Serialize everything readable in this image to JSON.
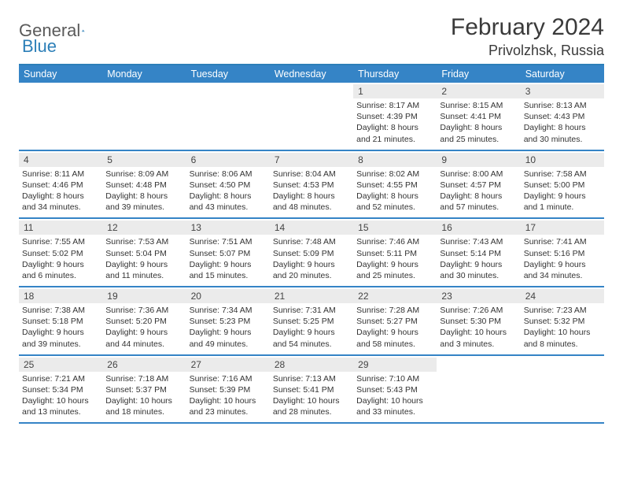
{
  "logo": {
    "part1": "General",
    "part2": "Blue"
  },
  "header": {
    "title": "February 2024",
    "location": "Privolzhsk, Russia"
  },
  "colors": {
    "header_bar": "#3584c6",
    "top_border": "#2c7fb8",
    "week_border": "#3584c6",
    "daynum_bg": "#ebebeb",
    "page_bg": "#ffffff",
    "text": "#333333"
  },
  "day_names": [
    "Sunday",
    "Monday",
    "Tuesday",
    "Wednesday",
    "Thursday",
    "Friday",
    "Saturday"
  ],
  "weeks": [
    [
      {
        "empty": true
      },
      {
        "empty": true
      },
      {
        "empty": true
      },
      {
        "empty": true
      },
      {
        "day": "1",
        "sunrise": "Sunrise: 8:17 AM",
        "sunset": "Sunset: 4:39 PM",
        "daylight1": "Daylight: 8 hours",
        "daylight2": "and 21 minutes."
      },
      {
        "day": "2",
        "sunrise": "Sunrise: 8:15 AM",
        "sunset": "Sunset: 4:41 PM",
        "daylight1": "Daylight: 8 hours",
        "daylight2": "and 25 minutes."
      },
      {
        "day": "3",
        "sunrise": "Sunrise: 8:13 AM",
        "sunset": "Sunset: 4:43 PM",
        "daylight1": "Daylight: 8 hours",
        "daylight2": "and 30 minutes."
      }
    ],
    [
      {
        "day": "4",
        "sunrise": "Sunrise: 8:11 AM",
        "sunset": "Sunset: 4:46 PM",
        "daylight1": "Daylight: 8 hours",
        "daylight2": "and 34 minutes."
      },
      {
        "day": "5",
        "sunrise": "Sunrise: 8:09 AM",
        "sunset": "Sunset: 4:48 PM",
        "daylight1": "Daylight: 8 hours",
        "daylight2": "and 39 minutes."
      },
      {
        "day": "6",
        "sunrise": "Sunrise: 8:06 AM",
        "sunset": "Sunset: 4:50 PM",
        "daylight1": "Daylight: 8 hours",
        "daylight2": "and 43 minutes."
      },
      {
        "day": "7",
        "sunrise": "Sunrise: 8:04 AM",
        "sunset": "Sunset: 4:53 PM",
        "daylight1": "Daylight: 8 hours",
        "daylight2": "and 48 minutes."
      },
      {
        "day": "8",
        "sunrise": "Sunrise: 8:02 AM",
        "sunset": "Sunset: 4:55 PM",
        "daylight1": "Daylight: 8 hours",
        "daylight2": "and 52 minutes."
      },
      {
        "day": "9",
        "sunrise": "Sunrise: 8:00 AM",
        "sunset": "Sunset: 4:57 PM",
        "daylight1": "Daylight: 8 hours",
        "daylight2": "and 57 minutes."
      },
      {
        "day": "10",
        "sunrise": "Sunrise: 7:58 AM",
        "sunset": "Sunset: 5:00 PM",
        "daylight1": "Daylight: 9 hours",
        "daylight2": "and 1 minute."
      }
    ],
    [
      {
        "day": "11",
        "sunrise": "Sunrise: 7:55 AM",
        "sunset": "Sunset: 5:02 PM",
        "daylight1": "Daylight: 9 hours",
        "daylight2": "and 6 minutes."
      },
      {
        "day": "12",
        "sunrise": "Sunrise: 7:53 AM",
        "sunset": "Sunset: 5:04 PM",
        "daylight1": "Daylight: 9 hours",
        "daylight2": "and 11 minutes."
      },
      {
        "day": "13",
        "sunrise": "Sunrise: 7:51 AM",
        "sunset": "Sunset: 5:07 PM",
        "daylight1": "Daylight: 9 hours",
        "daylight2": "and 15 minutes."
      },
      {
        "day": "14",
        "sunrise": "Sunrise: 7:48 AM",
        "sunset": "Sunset: 5:09 PM",
        "daylight1": "Daylight: 9 hours",
        "daylight2": "and 20 minutes."
      },
      {
        "day": "15",
        "sunrise": "Sunrise: 7:46 AM",
        "sunset": "Sunset: 5:11 PM",
        "daylight1": "Daylight: 9 hours",
        "daylight2": "and 25 minutes."
      },
      {
        "day": "16",
        "sunrise": "Sunrise: 7:43 AM",
        "sunset": "Sunset: 5:14 PM",
        "daylight1": "Daylight: 9 hours",
        "daylight2": "and 30 minutes."
      },
      {
        "day": "17",
        "sunrise": "Sunrise: 7:41 AM",
        "sunset": "Sunset: 5:16 PM",
        "daylight1": "Daylight: 9 hours",
        "daylight2": "and 34 minutes."
      }
    ],
    [
      {
        "day": "18",
        "sunrise": "Sunrise: 7:38 AM",
        "sunset": "Sunset: 5:18 PM",
        "daylight1": "Daylight: 9 hours",
        "daylight2": "and 39 minutes."
      },
      {
        "day": "19",
        "sunrise": "Sunrise: 7:36 AM",
        "sunset": "Sunset: 5:20 PM",
        "daylight1": "Daylight: 9 hours",
        "daylight2": "and 44 minutes."
      },
      {
        "day": "20",
        "sunrise": "Sunrise: 7:34 AM",
        "sunset": "Sunset: 5:23 PM",
        "daylight1": "Daylight: 9 hours",
        "daylight2": "and 49 minutes."
      },
      {
        "day": "21",
        "sunrise": "Sunrise: 7:31 AM",
        "sunset": "Sunset: 5:25 PM",
        "daylight1": "Daylight: 9 hours",
        "daylight2": "and 54 minutes."
      },
      {
        "day": "22",
        "sunrise": "Sunrise: 7:28 AM",
        "sunset": "Sunset: 5:27 PM",
        "daylight1": "Daylight: 9 hours",
        "daylight2": "and 58 minutes."
      },
      {
        "day": "23",
        "sunrise": "Sunrise: 7:26 AM",
        "sunset": "Sunset: 5:30 PM",
        "daylight1": "Daylight: 10 hours",
        "daylight2": "and 3 minutes."
      },
      {
        "day": "24",
        "sunrise": "Sunrise: 7:23 AM",
        "sunset": "Sunset: 5:32 PM",
        "daylight1": "Daylight: 10 hours",
        "daylight2": "and 8 minutes."
      }
    ],
    [
      {
        "day": "25",
        "sunrise": "Sunrise: 7:21 AM",
        "sunset": "Sunset: 5:34 PM",
        "daylight1": "Daylight: 10 hours",
        "daylight2": "and 13 minutes."
      },
      {
        "day": "26",
        "sunrise": "Sunrise: 7:18 AM",
        "sunset": "Sunset: 5:37 PM",
        "daylight1": "Daylight: 10 hours",
        "daylight2": "and 18 minutes."
      },
      {
        "day": "27",
        "sunrise": "Sunrise: 7:16 AM",
        "sunset": "Sunset: 5:39 PM",
        "daylight1": "Daylight: 10 hours",
        "daylight2": "and 23 minutes."
      },
      {
        "day": "28",
        "sunrise": "Sunrise: 7:13 AM",
        "sunset": "Sunset: 5:41 PM",
        "daylight1": "Daylight: 10 hours",
        "daylight2": "and 28 minutes."
      },
      {
        "day": "29",
        "sunrise": "Sunrise: 7:10 AM",
        "sunset": "Sunset: 5:43 PM",
        "daylight1": "Daylight: 10 hours",
        "daylight2": "and 33 minutes."
      },
      {
        "empty": true
      },
      {
        "empty": true
      }
    ]
  ]
}
